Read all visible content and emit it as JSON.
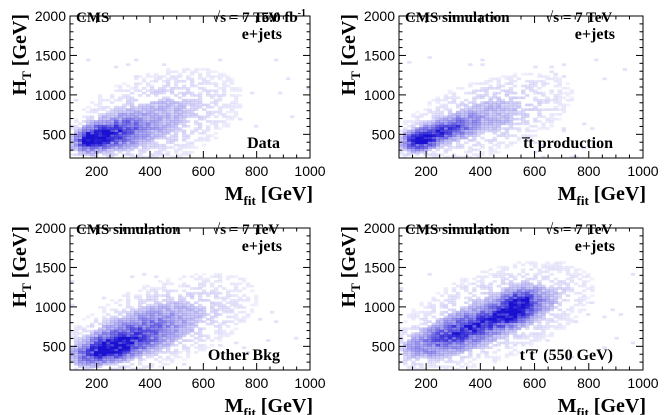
{
  "chart_data": [
    {
      "type": "heatmap",
      "experiment": "CMS",
      "energy": "√s = 7 TeV",
      "lumi": "5.0 fb",
      "lumi_sup": "-1",
      "channel": "e+jets",
      "sample": "Data",
      "xlabel": "M",
      "xlabel_sub": "fit",
      "xlabel_unit": " [GeV]",
      "ylabel": "H",
      "ylabel_sub": "T",
      "ylabel_unit": " [GeV]",
      "xlim": [
        100,
        1000
      ],
      "ylim": [
        200,
        2000
      ],
      "xticks": [
        200,
        400,
        600,
        800,
        1000
      ],
      "yticks": [
        500,
        1000,
        1500,
        2000
      ],
      "color": "#1a10d0",
      "density_components": [
        {
          "x": 190,
          "y": 450,
          "sx": 35,
          "sy": 75,
          "rho": 0.3,
          "w": 1.0
        },
        {
          "x": 270,
          "y": 520,
          "sx": 70,
          "sy": 110,
          "rho": 0.4,
          "w": 0.55
        },
        {
          "x": 420,
          "y": 700,
          "sx": 160,
          "sy": 320,
          "rho": 0.4,
          "w": 0.08
        }
      ]
    },
    {
      "type": "heatmap",
      "experiment": "CMS simulation",
      "energy": "√s = 7 TeV",
      "channel": "e+jets",
      "sample": "t̅t production",
      "xlabel": "M",
      "xlabel_sub": "fit",
      "xlabel_unit": " [GeV]",
      "ylabel": "H",
      "ylabel_sub": "T",
      "ylabel_unit": " [GeV]",
      "xlim": [
        100,
        1000
      ],
      "ylim": [
        200,
        2000
      ],
      "xticks": [
        200,
        400,
        600,
        800,
        1000
      ],
      "yticks": [
        500,
        1000,
        1500,
        2000
      ],
      "color": "#1a10d0",
      "density_components": [
        {
          "x": 185,
          "y": 440,
          "sx": 35,
          "sy": 70,
          "rho": 0.3,
          "w": 1.0
        },
        {
          "x": 280,
          "y": 560,
          "sx": 60,
          "sy": 90,
          "rho": 0.6,
          "w": 0.5
        },
        {
          "x": 420,
          "y": 720,
          "sx": 160,
          "sy": 280,
          "rho": 0.5,
          "w": 0.08
        }
      ]
    },
    {
      "type": "heatmap",
      "experiment": "CMS simulation",
      "energy": "√s = 7 TeV",
      "channel": "e+jets",
      "sample": "Other Bkg",
      "xlabel": "M",
      "xlabel_sub": "fit",
      "xlabel_unit": " [GeV]",
      "ylabel": "H",
      "ylabel_sub": "T",
      "ylabel_unit": " [GeV]",
      "xlim": [
        100,
        1000
      ],
      "ylim": [
        200,
        2000
      ],
      "xticks": [
        200,
        400,
        600,
        800,
        1000
      ],
      "yticks": [
        500,
        1000,
        1500,
        2000
      ],
      "color": "#1a10d0",
      "density_components": [
        {
          "x": 250,
          "y": 480,
          "sx": 60,
          "sy": 90,
          "rho": 0.5,
          "w": 1.0
        },
        {
          "x": 330,
          "y": 620,
          "sx": 100,
          "sy": 160,
          "rho": 0.6,
          "w": 0.4
        },
        {
          "x": 450,
          "y": 800,
          "sx": 180,
          "sy": 320,
          "rho": 0.5,
          "w": 0.07
        }
      ]
    },
    {
      "type": "heatmap",
      "experiment": "CMS simulation",
      "energy": "√s = 7 TeV",
      "channel": "e+jets",
      "sample": "t′t̅′ (550 GeV)",
      "xlabel": "M",
      "xlabel_sub": "fit",
      "xlabel_unit": " [GeV]",
      "ylabel": "H",
      "ylabel_sub": "T",
      "ylabel_unit": " [GeV]",
      "xlim": [
        100,
        1000
      ],
      "ylim": [
        200,
        2000
      ],
      "xticks": [
        200,
        400,
        600,
        800,
        1000
      ],
      "yticks": [
        500,
        1000,
        1500,
        2000
      ],
      "color": "#1a10d0",
      "density_components": [
        {
          "x": 530,
          "y": 1000,
          "sx": 40,
          "sy": 110,
          "rho": 0.4,
          "w": 1.0
        },
        {
          "x": 420,
          "y": 820,
          "sx": 110,
          "sy": 150,
          "rho": 0.8,
          "w": 0.55
        },
        {
          "x": 300,
          "y": 620,
          "sx": 90,
          "sy": 140,
          "rho": 0.6,
          "w": 0.3
        },
        {
          "x": 450,
          "y": 900,
          "sx": 180,
          "sy": 340,
          "rho": 0.5,
          "w": 0.08
        }
      ]
    }
  ]
}
